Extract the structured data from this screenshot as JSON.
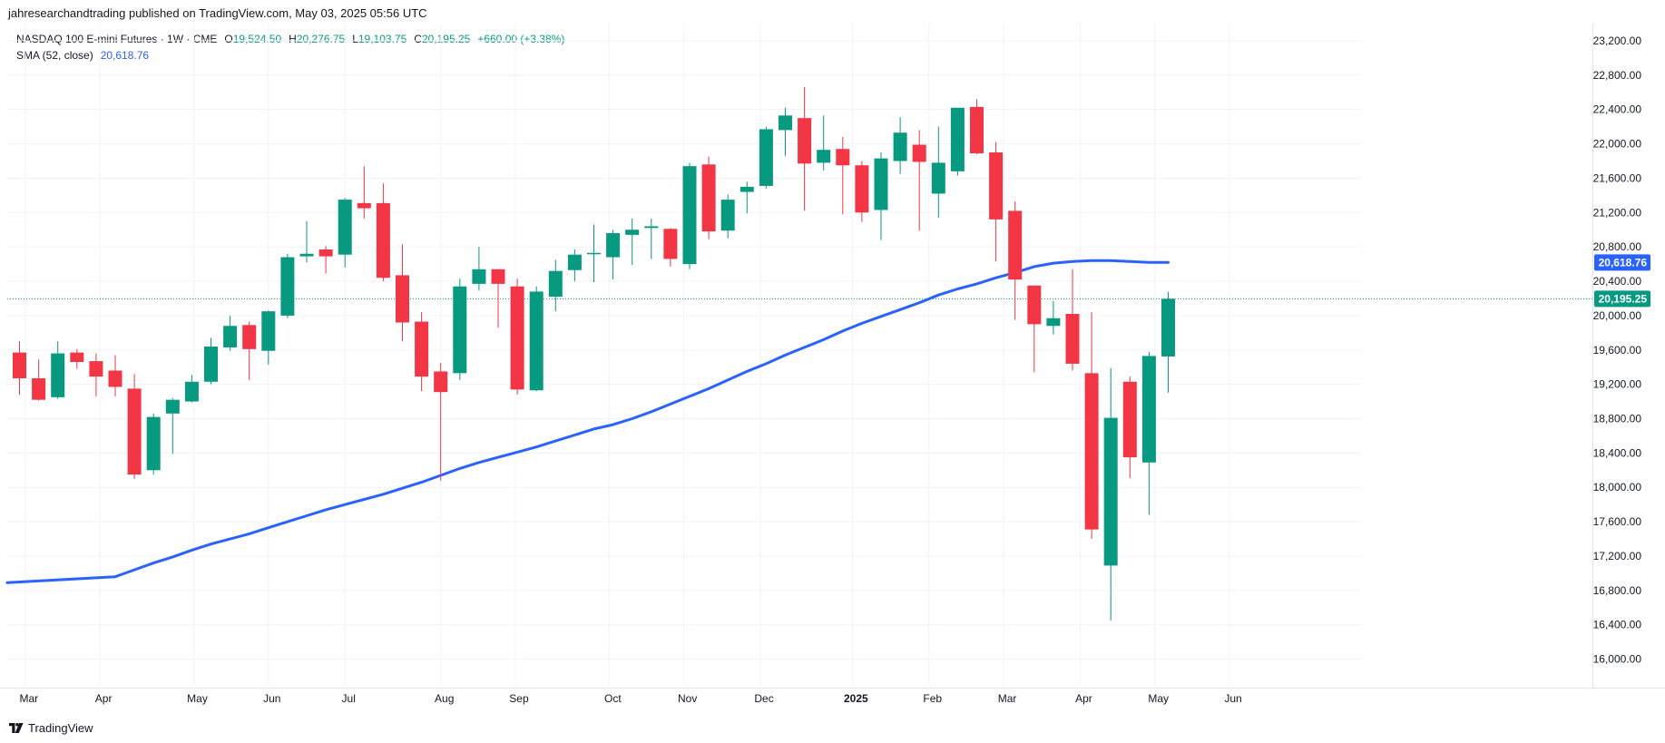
{
  "header": {
    "publisher_text": "jahresearchandtrading published on TradingView.com, May 03, 2025 05:56 UTC"
  },
  "legend": {
    "symbol": "NASDAQ 100 E-mini Futures · 1W · CME",
    "open_label": "O",
    "open_value": "19,524.50",
    "high_label": "H",
    "high_value": "20,276.75",
    "low_label": "L",
    "low_value": "19,103.75",
    "close_label": "C",
    "close_value": "20,195.25",
    "change": "+660.00 (+3.38%)",
    "sma_label": "SMA (52, close)",
    "sma_value": "20,618.76"
  },
  "footer": {
    "brand": "TradingView"
  },
  "colors": {
    "up": "#089981",
    "down": "#f23645",
    "sma": "#2962ff",
    "grid": "#f0f3fa",
    "price_line": "#089981"
  },
  "chart_data": {
    "type": "candlestick",
    "interval": "1W",
    "ylim": [
      15700,
      23400
    ],
    "grid": true,
    "price_axis": "right",
    "y_ticks": [
      16000,
      16400,
      16800,
      17200,
      17600,
      18000,
      18400,
      18800,
      19200,
      19600,
      20000,
      20400,
      20800,
      21200,
      21600,
      22000,
      22400,
      22800,
      23200
    ],
    "y_tick_labels": [
      "16,000.00",
      "16,400.00",
      "16,800.00",
      "17,200.00",
      "17,600.00",
      "18,000.00",
      "18,400.00",
      "18,800.00",
      "19,200.00",
      "19,600.00",
      "20,000.00",
      "20,400.00",
      "20,800.00",
      "21,200.00",
      "21,600.00",
      "22,000.00",
      "22,400.00",
      "22,800.00",
      "23,200.00"
    ],
    "x_ticks": [
      {
        "label": "Mar",
        "index": 0.3
      },
      {
        "label": "Apr",
        "index": 4.2
      },
      {
        "label": "May",
        "index": 9.1
      },
      {
        "label": "Jun",
        "index": 13
      },
      {
        "label": "Jul",
        "index": 17
      },
      {
        "label": "Aug",
        "index": 22
      },
      {
        "label": "Sep",
        "index": 25.9
      },
      {
        "label": "Oct",
        "index": 30.8
      },
      {
        "label": "Nov",
        "index": 34.7
      },
      {
        "label": "Dec",
        "index": 38.7
      },
      {
        "label": "2025",
        "index": 43.5,
        "bold": true
      },
      {
        "label": "Feb",
        "index": 47.5
      },
      {
        "label": "Mar",
        "index": 51.4
      },
      {
        "label": "Apr",
        "index": 55.4
      },
      {
        "label": "May",
        "index": 59.3
      },
      {
        "label": "Jun",
        "index": 63.2
      }
    ],
    "candles": [
      {
        "o": 19570,
        "h": 19700,
        "l": 19080,
        "c": 19270
      },
      {
        "o": 19270,
        "h": 19490,
        "l": 19010,
        "c": 19020
      },
      {
        "o": 19050,
        "h": 19700,
        "l": 19030,
        "c": 19560
      },
      {
        "o": 19570,
        "h": 19610,
        "l": 19380,
        "c": 19460
      },
      {
        "o": 19470,
        "h": 19560,
        "l": 19060,
        "c": 19290
      },
      {
        "o": 19360,
        "h": 19540,
        "l": 19060,
        "c": 19170
      },
      {
        "o": 19150,
        "h": 19320,
        "l": 18100,
        "c": 18150
      },
      {
        "o": 18200,
        "h": 18860,
        "l": 18150,
        "c": 18820
      },
      {
        "o": 18860,
        "h": 19040,
        "l": 18390,
        "c": 19020
      },
      {
        "o": 19000,
        "h": 19310,
        "l": 18990,
        "c": 19230
      },
      {
        "o": 19230,
        "h": 19740,
        "l": 19200,
        "c": 19640
      },
      {
        "o": 19630,
        "h": 20000,
        "l": 19590,
        "c": 19880
      },
      {
        "o": 19890,
        "h": 19930,
        "l": 19250,
        "c": 19610
      },
      {
        "o": 19590,
        "h": 20060,
        "l": 19430,
        "c": 20050
      },
      {
        "o": 20000,
        "h": 20720,
        "l": 19970,
        "c": 20680
      },
      {
        "o": 20690,
        "h": 21100,
        "l": 20620,
        "c": 20720
      },
      {
        "o": 20770,
        "h": 20810,
        "l": 20490,
        "c": 20690
      },
      {
        "o": 20710,
        "h": 21370,
        "l": 20560,
        "c": 21350
      },
      {
        "o": 21310,
        "h": 21740,
        "l": 21130,
        "c": 21250
      },
      {
        "o": 21310,
        "h": 21540,
        "l": 20400,
        "c": 20440
      },
      {
        "o": 20470,
        "h": 20830,
        "l": 19700,
        "c": 19920
      },
      {
        "o": 19930,
        "h": 20040,
        "l": 19120,
        "c": 19290
      },
      {
        "o": 19350,
        "h": 19450,
        "l": 18080,
        "c": 19110
      },
      {
        "o": 19330,
        "h": 20430,
        "l": 19250,
        "c": 20340
      },
      {
        "o": 20370,
        "h": 20800,
        "l": 20290,
        "c": 20540
      },
      {
        "o": 20540,
        "h": 20540,
        "l": 19860,
        "c": 20370
      },
      {
        "o": 20340,
        "h": 20430,
        "l": 19080,
        "c": 19140
      },
      {
        "o": 19130,
        "h": 20340,
        "l": 19120,
        "c": 20280
      },
      {
        "o": 20220,
        "h": 20650,
        "l": 20050,
        "c": 20520
      },
      {
        "o": 20530,
        "h": 20770,
        "l": 20400,
        "c": 20710
      },
      {
        "o": 20730,
        "h": 21060,
        "l": 20390,
        "c": 20730
      },
      {
        "o": 20680,
        "h": 21000,
        "l": 20420,
        "c": 20960
      },
      {
        "o": 20940,
        "h": 21130,
        "l": 20590,
        "c": 21000
      },
      {
        "o": 21020,
        "h": 21130,
        "l": 20660,
        "c": 21040
      },
      {
        "o": 21010,
        "h": 21020,
        "l": 20570,
        "c": 20660
      },
      {
        "o": 20600,
        "h": 21780,
        "l": 20540,
        "c": 21740
      },
      {
        "o": 21760,
        "h": 21850,
        "l": 20890,
        "c": 20980
      },
      {
        "o": 20990,
        "h": 21410,
        "l": 20900,
        "c": 21350
      },
      {
        "o": 21440,
        "h": 21560,
        "l": 21190,
        "c": 21500
      },
      {
        "o": 21510,
        "h": 22200,
        "l": 21480,
        "c": 22170
      },
      {
        "o": 22160,
        "h": 22420,
        "l": 21860,
        "c": 22330
      },
      {
        "o": 22300,
        "h": 22660,
        "l": 21220,
        "c": 21770
      },
      {
        "o": 21780,
        "h": 22330,
        "l": 21690,
        "c": 21930
      },
      {
        "o": 21940,
        "h": 22080,
        "l": 21180,
        "c": 21750
      },
      {
        "o": 21750,
        "h": 21800,
        "l": 21090,
        "c": 21200
      },
      {
        "o": 21230,
        "h": 21900,
        "l": 20880,
        "c": 21830
      },
      {
        "o": 21800,
        "h": 22310,
        "l": 21650,
        "c": 22130
      },
      {
        "o": 21990,
        "h": 22160,
        "l": 20990,
        "c": 21790
      },
      {
        "o": 21420,
        "h": 22200,
        "l": 21140,
        "c": 21780
      },
      {
        "o": 21680,
        "h": 22420,
        "l": 21630,
        "c": 22420
      },
      {
        "o": 22430,
        "h": 22520,
        "l": 21880,
        "c": 21890
      },
      {
        "o": 21900,
        "h": 22020,
        "l": 20630,
        "c": 21120
      },
      {
        "o": 21220,
        "h": 21330,
        "l": 19950,
        "c": 20420
      },
      {
        "o": 20350,
        "h": 20350,
        "l": 19340,
        "c": 19900
      },
      {
        "o": 19880,
        "h": 20170,
        "l": 19780,
        "c": 19970
      },
      {
        "o": 20020,
        "h": 20540,
        "l": 19360,
        "c": 19440
      },
      {
        "o": 19330,
        "h": 20040,
        "l": 17400,
        "c": 17510
      },
      {
        "o": 17090,
        "h": 19390,
        "l": 16450,
        "c": 18810
      },
      {
        "o": 19230,
        "h": 19290,
        "l": 18110,
        "c": 18350
      },
      {
        "o": 18290,
        "h": 19580,
        "l": 17680,
        "c": 19530
      },
      {
        "o": 19524.5,
        "h": 20276.75,
        "l": 19103.75,
        "c": 20195.25
      }
    ],
    "series": [
      {
        "name": "SMA (52, close)",
        "type": "line",
        "values": [
          16890,
          16960,
          17040,
          17120,
          17190,
          17270,
          17340,
          17400,
          17460,
          17530,
          17600,
          17670,
          17740,
          17800,
          17860,
          17920,
          17990,
          18060,
          18140,
          18220,
          18290,
          18350,
          18410,
          18470,
          18540,
          18610,
          18680,
          18730,
          18800,
          18880,
          18970,
          19060,
          19150,
          19250,
          19350,
          19440,
          19540,
          19630,
          19720,
          19820,
          19910,
          19990,
          20070,
          20150,
          20240,
          20310,
          20370,
          20440,
          20500,
          20570,
          20610,
          20630,
          20640,
          20640,
          20630,
          20620,
          20618.76
        ]
      }
    ],
    "last_price": 20195.25,
    "last_price_label": "20,195.25",
    "sma_last_label": "20,618.76"
  }
}
